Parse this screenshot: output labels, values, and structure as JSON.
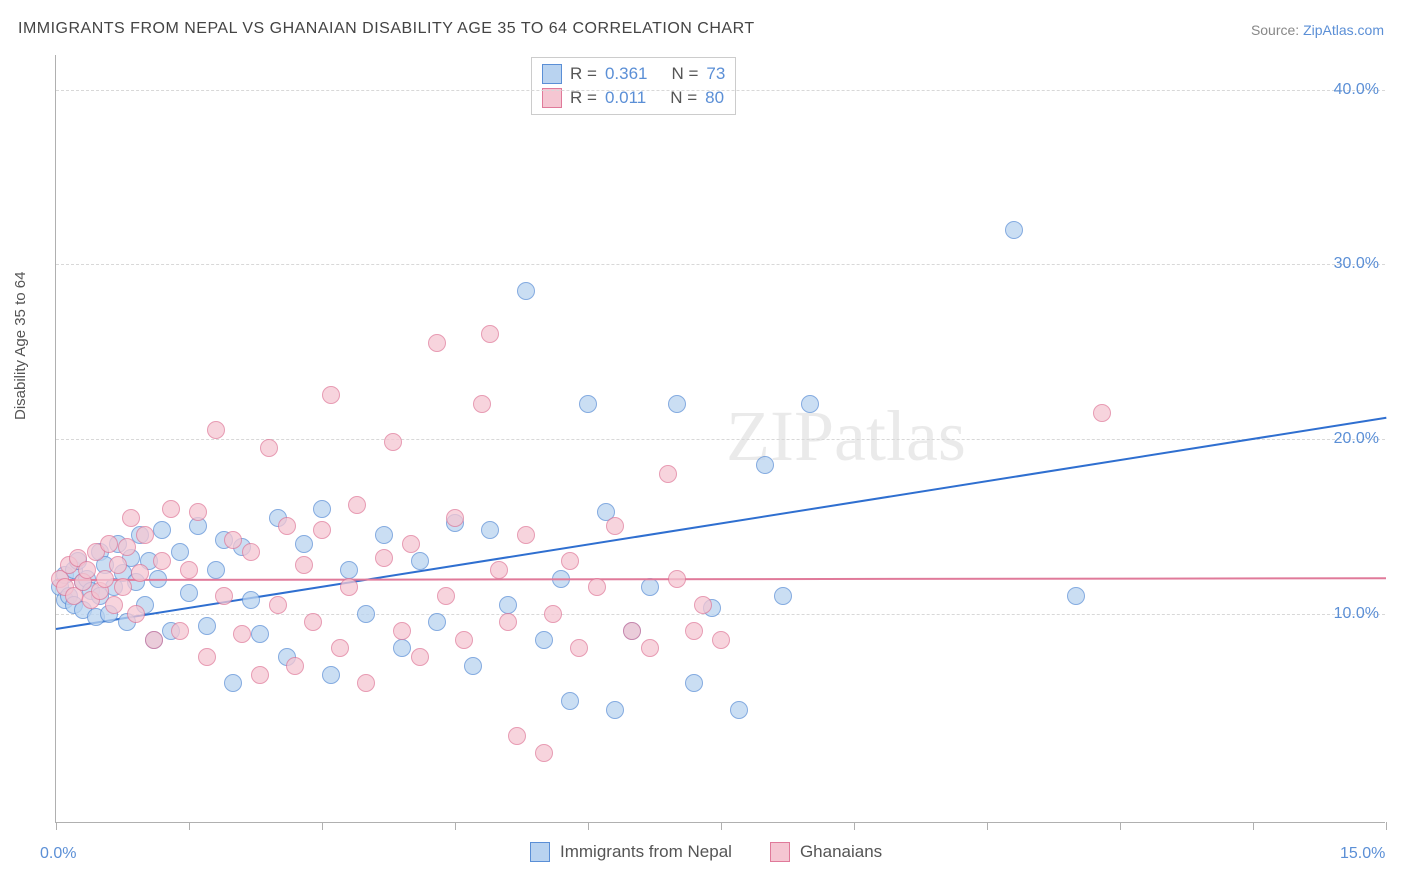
{
  "title": "IMMIGRANTS FROM NEPAL VS GHANAIAN DISABILITY AGE 35 TO 64 CORRELATION CHART",
  "source_label": "Source:",
  "source_name": "ZipAtlas.com",
  "ylabel": "Disability Age 35 to 64",
  "watermark": "ZIPatlas",
  "chart": {
    "type": "scatter",
    "xlim": [
      0,
      15
    ],
    "ylim": [
      -2,
      42
    ],
    "x_ticks": [
      0,
      1.5,
      3,
      4.5,
      6,
      7.5,
      9,
      10.5,
      12,
      13.5,
      15
    ],
    "x_tick_labels": {
      "0": "0.0%",
      "15": "15.0%"
    },
    "y_gridlines": [
      10,
      20,
      30,
      40
    ],
    "y_tick_labels": {
      "10": "10.0%",
      "20": "20.0%",
      "30": "30.0%",
      "40": "40.0%"
    },
    "background_color": "#ffffff",
    "grid_color": "#d8d8d8",
    "axis_color": "#b0b0b0",
    "label_color": "#5b8fd6"
  },
  "series": [
    {
      "name": "Immigrants from Nepal",
      "fill": "#b9d3f0",
      "stroke": "#5b8fd6",
      "fill_opacity": 0.75,
      "marker_radius": 9,
      "R": "0.361",
      "N": "73",
      "trend": {
        "x1": 0,
        "y1": 9.2,
        "x2": 15,
        "y2": 21.3,
        "color": "#2f6fd0",
        "width": 2
      },
      "points": [
        [
          0.05,
          11.5
        ],
        [
          0.1,
          10.8
        ],
        [
          0.1,
          12.2
        ],
        [
          0.15,
          11.0
        ],
        [
          0.2,
          12.5
        ],
        [
          0.2,
          10.5
        ],
        [
          0.25,
          13.0
        ],
        [
          0.3,
          11.8
        ],
        [
          0.3,
          10.2
        ],
        [
          0.35,
          12.0
        ],
        [
          0.4,
          11.3
        ],
        [
          0.45,
          9.8
        ],
        [
          0.5,
          13.5
        ],
        [
          0.5,
          11.0
        ],
        [
          0.55,
          12.8
        ],
        [
          0.6,
          10.0
        ],
        [
          0.65,
          11.5
        ],
        [
          0.7,
          14.0
        ],
        [
          0.75,
          12.3
        ],
        [
          0.8,
          9.5
        ],
        [
          0.85,
          13.2
        ],
        [
          0.9,
          11.8
        ],
        [
          0.95,
          14.5
        ],
        [
          1.0,
          10.5
        ],
        [
          1.05,
          13.0
        ],
        [
          1.1,
          8.5
        ],
        [
          1.15,
          12.0
        ],
        [
          1.2,
          14.8
        ],
        [
          1.3,
          9.0
        ],
        [
          1.4,
          13.5
        ],
        [
          1.5,
          11.2
        ],
        [
          1.6,
          15.0
        ],
        [
          1.7,
          9.3
        ],
        [
          1.8,
          12.5
        ],
        [
          1.9,
          14.2
        ],
        [
          2.0,
          6.0
        ],
        [
          2.1,
          13.8
        ],
        [
          2.2,
          10.8
        ],
        [
          2.3,
          8.8
        ],
        [
          2.5,
          15.5
        ],
        [
          2.6,
          7.5
        ],
        [
          2.8,
          14.0
        ],
        [
          3.0,
          16.0
        ],
        [
          3.1,
          6.5
        ],
        [
          3.3,
          12.5
        ],
        [
          3.5,
          10.0
        ],
        [
          3.7,
          14.5
        ],
        [
          3.9,
          8.0
        ],
        [
          4.1,
          13.0
        ],
        [
          4.3,
          9.5
        ],
        [
          4.5,
          15.2
        ],
        [
          4.7,
          7.0
        ],
        [
          4.9,
          14.8
        ],
        [
          5.1,
          10.5
        ],
        [
          5.3,
          28.5
        ],
        [
          5.5,
          8.5
        ],
        [
          5.7,
          12.0
        ],
        [
          5.8,
          5.0
        ],
        [
          6.0,
          22.0
        ],
        [
          6.2,
          15.8
        ],
        [
          6.3,
          4.5
        ],
        [
          6.5,
          9.0
        ],
        [
          6.7,
          11.5
        ],
        [
          7.0,
          22.0
        ],
        [
          7.2,
          6.0
        ],
        [
          7.4,
          10.3
        ],
        [
          7.7,
          4.5
        ],
        [
          8.0,
          18.5
        ],
        [
          8.2,
          11.0
        ],
        [
          8.5,
          22.0
        ],
        [
          10.8,
          32.0
        ],
        [
          11.5,
          11.0
        ]
      ]
    },
    {
      "name": "Ghanaians",
      "fill": "#f5c6d2",
      "stroke": "#e07a9a",
      "fill_opacity": 0.75,
      "marker_radius": 9,
      "R": "0.011",
      "N": "80",
      "trend": {
        "x1": 0,
        "y1": 12.0,
        "x2": 15,
        "y2": 12.1,
        "color": "#e07a9a",
        "width": 2
      },
      "points": [
        [
          0.05,
          12.0
        ],
        [
          0.1,
          11.5
        ],
        [
          0.15,
          12.8
        ],
        [
          0.2,
          11.0
        ],
        [
          0.25,
          13.2
        ],
        [
          0.3,
          11.8
        ],
        [
          0.35,
          12.5
        ],
        [
          0.4,
          10.8
        ],
        [
          0.45,
          13.5
        ],
        [
          0.5,
          11.3
        ],
        [
          0.55,
          12.0
        ],
        [
          0.6,
          14.0
        ],
        [
          0.65,
          10.5
        ],
        [
          0.7,
          12.8
        ],
        [
          0.75,
          11.5
        ],
        [
          0.8,
          13.8
        ],
        [
          0.85,
          15.5
        ],
        [
          0.9,
          10.0
        ],
        [
          0.95,
          12.3
        ],
        [
          1.0,
          14.5
        ],
        [
          1.1,
          8.5
        ],
        [
          1.2,
          13.0
        ],
        [
          1.3,
          16.0
        ],
        [
          1.4,
          9.0
        ],
        [
          1.5,
          12.5
        ],
        [
          1.6,
          15.8
        ],
        [
          1.7,
          7.5
        ],
        [
          1.8,
          20.5
        ],
        [
          1.9,
          11.0
        ],
        [
          2.0,
          14.2
        ],
        [
          2.1,
          8.8
        ],
        [
          2.2,
          13.5
        ],
        [
          2.3,
          6.5
        ],
        [
          2.4,
          19.5
        ],
        [
          2.5,
          10.5
        ],
        [
          2.6,
          15.0
        ],
        [
          2.7,
          7.0
        ],
        [
          2.8,
          12.8
        ],
        [
          2.9,
          9.5
        ],
        [
          3.0,
          14.8
        ],
        [
          3.1,
          22.5
        ],
        [
          3.2,
          8.0
        ],
        [
          3.3,
          11.5
        ],
        [
          3.4,
          16.2
        ],
        [
          3.5,
          6.0
        ],
        [
          3.7,
          13.2
        ],
        [
          3.8,
          19.8
        ],
        [
          3.9,
          9.0
        ],
        [
          4.0,
          14.0
        ],
        [
          4.1,
          7.5
        ],
        [
          4.3,
          25.5
        ],
        [
          4.4,
          11.0
        ],
        [
          4.5,
          15.5
        ],
        [
          4.6,
          8.5
        ],
        [
          4.8,
          22.0
        ],
        [
          4.9,
          26.0
        ],
        [
          5.0,
          12.5
        ],
        [
          5.1,
          9.5
        ],
        [
          5.2,
          3.0
        ],
        [
          5.3,
          14.5
        ],
        [
          5.5,
          2.0
        ],
        [
          5.6,
          10.0
        ],
        [
          5.8,
          13.0
        ],
        [
          5.9,
          8.0
        ],
        [
          6.1,
          11.5
        ],
        [
          6.3,
          15.0
        ],
        [
          6.5,
          9.0
        ],
        [
          6.7,
          8.0
        ],
        [
          6.9,
          18.0
        ],
        [
          7.0,
          12.0
        ],
        [
          7.2,
          9.0
        ],
        [
          7.3,
          10.5
        ],
        [
          7.5,
          8.5
        ],
        [
          11.8,
          21.5
        ]
      ]
    }
  ],
  "stat_legend": {
    "R_label": "R =",
    "N_label": "N ="
  },
  "bottom_legend": {
    "items": [
      "Immigrants from Nepal",
      "Ghanaians"
    ]
  }
}
